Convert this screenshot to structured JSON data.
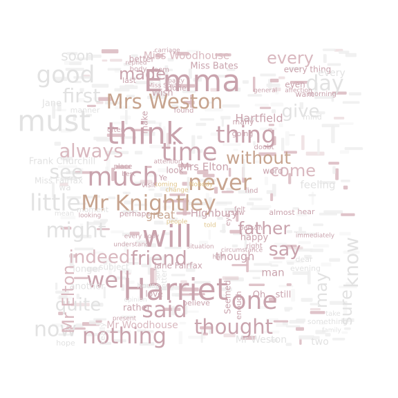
{
  "background": "#ffffff",
  "palette": {
    "rose": "#c9a3ad",
    "rose_light": "#d9b8bf",
    "tan": "#c7a48f",
    "gray": "#e2e2e2",
    "gray_dark": "#d6d6d6",
    "pale": "#eeeeee",
    "pale_dark": "#e6e6e6",
    "gold": "#e0c48a"
  },
  "words": [
    {
      "text": "Emma",
      "c": "rose",
      "v": true
    },
    {
      "text": "will",
      "c": "rose",
      "v": true
    },
    {
      "text": "Harriet",
      "c": "rose",
      "v": true
    },
    {
      "text": "think",
      "c": "rose",
      "v": true
    },
    {
      "text": "much",
      "c": "rose",
      "v": true
    },
    {
      "text": "Mr Knightley",
      "c": "tan",
      "v": true
    },
    {
      "text": "never",
      "c": "tan",
      "v": true
    },
    {
      "text": "Mrs Weston",
      "c": "tan",
      "v": true
    },
    {
      "text": "thing",
      "c": "rose",
      "v": true
    },
    {
      "text": "time",
      "c": "rose",
      "v": true
    },
    {
      "text": "without",
      "c": "tan",
      "v": true
    },
    {
      "text": "well",
      "c": "rose",
      "v": true
    },
    {
      "text": "one",
      "c": "rose",
      "v": true
    },
    {
      "text": "said",
      "c": "rose",
      "v": true
    },
    {
      "text": "nothing",
      "c": "rose",
      "v": true
    },
    {
      "text": "thought",
      "c": "rose",
      "v": true
    },
    {
      "text": "friend",
      "c": "rose",
      "v": true
    },
    {
      "text": "always",
      "c": "rose_light",
      "v": true
    },
    {
      "text": "father",
      "c": "rose",
      "v": true
    },
    {
      "text": "say",
      "c": "rose",
      "v": true
    },
    {
      "text": "know",
      "c": "gray",
      "v": true
    },
    {
      "text": "must",
      "c": "gray",
      "v": true
    },
    {
      "text": "little",
      "c": "gray",
      "v": true
    },
    {
      "text": "good",
      "c": "gray",
      "v": true
    },
    {
      "text": "first",
      "c": "gray",
      "v": true
    },
    {
      "text": "might",
      "c": "gray",
      "v": true
    },
    {
      "text": "quite",
      "c": "gray",
      "v": true
    },
    {
      "text": "now",
      "c": "gray",
      "v": true
    },
    {
      "text": "Mr Elton",
      "c": "rose_light",
      "v": true
    },
    {
      "text": "made",
      "c": "rose",
      "v": true
    },
    {
      "text": "every",
      "c": "rose_light",
      "v": true
    },
    {
      "text": "day",
      "c": "gray",
      "v": true
    },
    {
      "text": "give",
      "c": "gray",
      "v": true
    },
    {
      "text": "come",
      "c": "rose_light",
      "v": true
    },
    {
      "text": "see",
      "c": "gray",
      "v": true
    },
    {
      "text": "indeed",
      "c": "rose_light",
      "v": true
    },
    {
      "text": "sure",
      "c": "gray",
      "v": true
    },
    {
      "text": "may",
      "c": "gray",
      "v": true
    },
    {
      "text": "Miss Woodhouse",
      "c": "rose_light",
      "v": true
    },
    {
      "text": "Hartfield",
      "c": "rose",
      "v": true
    },
    {
      "text": "Miss Bates",
      "c": "rose",
      "v": true
    },
    {
      "text": "soon",
      "c": "gray",
      "v": true
    },
    {
      "text": "Mrs Elton",
      "c": "rose",
      "v": true
    },
    {
      "text": "feeling",
      "c": "gray",
      "v": true
    },
    {
      "text": "Highbury",
      "c": "rose",
      "v": true
    },
    {
      "text": "great",
      "c": "tan",
      "v": true
    },
    {
      "text": "though",
      "c": "rose",
      "v": true
    },
    {
      "text": "Jane Fairfax",
      "c": "rose",
      "v": true
    },
    {
      "text": "man",
      "c": "rose",
      "v": true
    },
    {
      "text": "Oh",
      "c": "rose",
      "v": true
    },
    {
      "text": "still",
      "c": "rose",
      "v": true
    },
    {
      "text": "Mr Woodhouse",
      "c": "rose_light",
      "v": true
    },
    {
      "text": "Mr Weston",
      "c": "gray",
      "v": true
    },
    {
      "text": "two",
      "c": "gray",
      "v": true
    },
    {
      "text": "happy",
      "c": "rose",
      "v": true
    },
    {
      "text": "better",
      "c": "rose",
      "v": true
    },
    {
      "text": "Frank Churchill",
      "c": "gray",
      "v": true
    },
    {
      "text": "Miss Fairfax",
      "c": "gray",
      "v": true
    },
    {
      "text": "Jane",
      "c": "gray",
      "v": true
    },
    {
      "text": "really",
      "c": "gray",
      "v": true
    },
    {
      "text": "hope",
      "c": "gray",
      "v": true
    },
    {
      "text": "letter",
      "c": "gray",
      "v": true
    },
    {
      "text": "love",
      "c": "rose",
      "v": true
    },
    {
      "text": "rather",
      "c": "rose",
      "v": true
    },
    {
      "text": "house",
      "c": "gray",
      "v": true
    },
    {
      "text": "Seemed",
      "c": "rose",
      "v": true
    },
    {
      "text": "subject",
      "c": "gray",
      "v": true
    },
    {
      "text": "evening",
      "c": "gray",
      "v": true
    },
    {
      "text": "dear",
      "c": "gray",
      "v": true
    },
    {
      "text": "perhaps",
      "c": "rose",
      "v": true
    },
    {
      "text": "almost",
      "c": "rose",
      "v": true
    },
    {
      "text": "hear",
      "c": "rose",
      "v": true
    },
    {
      "text": "every thing",
      "c": "rose",
      "v": true
    },
    {
      "text": "look",
      "c": "rose",
      "v": true
    },
    {
      "text": "word",
      "c": "rose",
      "v": true
    },
    {
      "text": "person",
      "c": "rose",
      "v": true
    },
    {
      "text": "right",
      "c": "rose",
      "v": true
    },
    {
      "text": "done",
      "c": "rose",
      "v": true
    },
    {
      "text": "believe",
      "c": "rose",
      "v": true
    },
    {
      "text": "enough",
      "c": "rose",
      "v": true
    },
    {
      "text": "found",
      "c": "rose",
      "v": true
    },
    {
      "text": "going",
      "c": "rose",
      "v": true
    },
    {
      "text": "many",
      "c": "rose",
      "v": true
    },
    {
      "text": "felt",
      "c": "rose",
      "v": true
    },
    {
      "text": "even",
      "c": "rose",
      "v": true
    },
    {
      "text": "want",
      "c": "rose",
      "v": true
    },
    {
      "text": "room",
      "c": "rose",
      "v": true
    },
    {
      "text": "last",
      "c": "rose",
      "v": true
    },
    {
      "text": "body",
      "c": "rose",
      "v": true
    },
    {
      "text": "Wish",
      "c": "rose",
      "v": true
    },
    {
      "text": "make",
      "c": "rose",
      "v": true
    },
    {
      "text": "every body",
      "c": "rose",
      "v": true
    },
    {
      "text": "understand",
      "c": "rose",
      "v": true
    },
    {
      "text": "moment",
      "c": "gray",
      "v": true
    },
    {
      "text": "manner",
      "c": "gray",
      "v": true
    },
    {
      "text": "mind",
      "c": "gray",
      "v": true
    },
    {
      "text": "doubt",
      "c": "rose",
      "v": true
    },
    {
      "text": "Nobody",
      "c": "gold",
      "v": true
    },
    {
      "text": "change",
      "c": "gold",
      "v": true
    },
    {
      "text": "coming",
      "c": "gold",
      "v": true
    },
    {
      "text": "told",
      "c": "gold",
      "v": true
    },
    {
      "text": "people",
      "c": "gold",
      "v": true
    },
    {
      "text": "find",
      "c": "rose",
      "v": true
    },
    {
      "text": "visit",
      "c": "rose",
      "v": true
    },
    {
      "text": "place",
      "c": "rose",
      "v": true
    },
    {
      "text": "best",
      "c": "rose",
      "v": true
    },
    {
      "text": "attention",
      "c": "rose",
      "v": true
    },
    {
      "text": "often",
      "c": "rose",
      "v": true
    },
    {
      "text": "general",
      "c": "rose",
      "v": true
    },
    {
      "text": "affection",
      "c": "rose",
      "v": true
    },
    {
      "text": "morning",
      "c": "rose",
      "v": true
    },
    {
      "text": "carriage",
      "c": "rose",
      "v": true
    },
    {
      "text": "party",
      "c": "rose",
      "v": true
    },
    {
      "text": "replied",
      "c": "rose",
      "v": true
    },
    {
      "text": "Miss Smith",
      "c": "rose",
      "v": true
    },
    {
      "text": "situation",
      "c": "rose",
      "v": true
    },
    {
      "text": "half",
      "c": "rose",
      "v": true
    },
    {
      "text": "circumstance",
      "c": "rose",
      "v": true
    },
    {
      "text": "immediately",
      "c": "rose",
      "v": true
    },
    {
      "text": "something",
      "c": "gray",
      "v": true
    },
    {
      "text": "take",
      "c": "gray",
      "v": true
    },
    {
      "text": "family",
      "c": "gray",
      "v": true
    },
    {
      "text": "sort",
      "c": "gray",
      "v": true
    },
    {
      "text": "present",
      "c": "rose",
      "v": true
    },
    {
      "text": "opinion",
      "c": "gray",
      "v": true
    },
    {
      "text": "another",
      "c": "gray",
      "v": true
    },
    {
      "text": "longer",
      "c": "gray",
      "v": true
    },
    {
      "text": "mean",
      "c": "gray",
      "v": true
    },
    {
      "text": "looking",
      "c": "rose",
      "v": true
    },
    {
      "text": "Ye",
      "c": "rose",
      "v": true
    },
    {
      "text": "saw",
      "c": "rose",
      "v": true
    },
    {
      "text": "eye",
      "c": "rose",
      "v": true
    },
    {
      "text": "wa",
      "c": "gray",
      "v": true
    },
    {
      "text": "every",
      "c": "gray",
      "v": true
    }
  ]
}
